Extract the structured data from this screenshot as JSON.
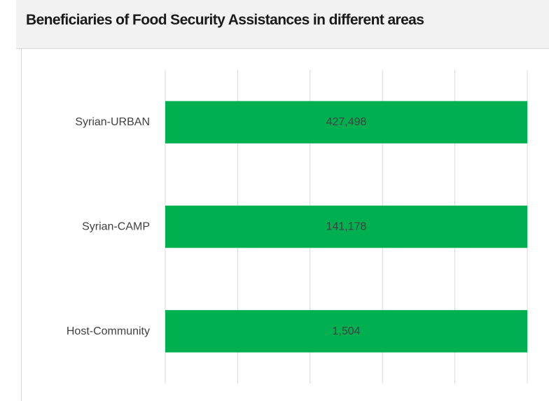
{
  "chart_data": {
    "type": "bar",
    "orientation": "horizontal",
    "title": "Beneficiaries of Food Security Assistances in different areas",
    "categories": [
      "Syrian-URBAN",
      "Syrian-CAMP",
      "Host-Community"
    ],
    "values": [
      427498,
      141178,
      1504
    ],
    "value_labels": [
      "427,498",
      "141,178",
      "1,504"
    ],
    "bar_color": "#00b050",
    "grid": true,
    "legend": "none",
    "xaxis_labels": "hidden"
  }
}
